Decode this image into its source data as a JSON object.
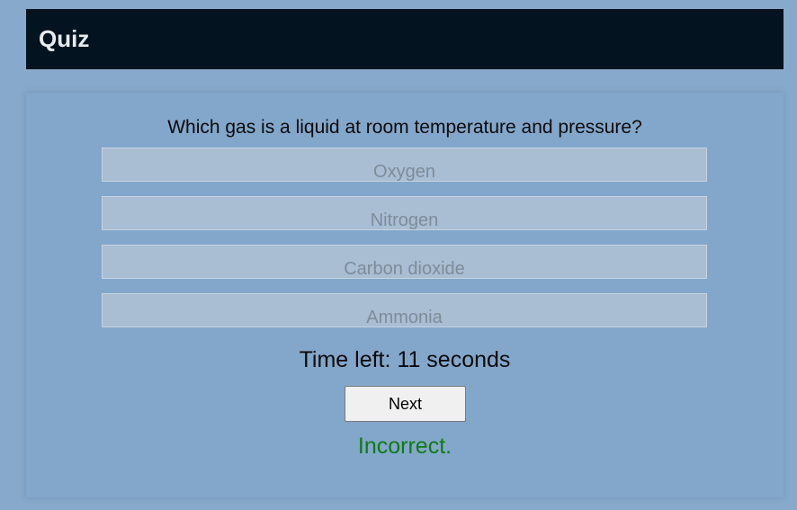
{
  "header": {
    "title": "Quiz"
  },
  "quiz": {
    "question": "Which gas is a liquid at room temperature and pressure?",
    "options": [
      "Oxygen",
      "Nitrogen",
      "Carbon dioxide",
      "Ammonia"
    ],
    "timer_text": "Time left: 11 seconds",
    "next_label": "Next",
    "feedback": "Incorrect."
  },
  "colors": {
    "page_background": "#87a9cb",
    "header_background": "#03131f",
    "option_background": "#a9bdd3",
    "feedback_incorrect": "#0f7a12"
  }
}
